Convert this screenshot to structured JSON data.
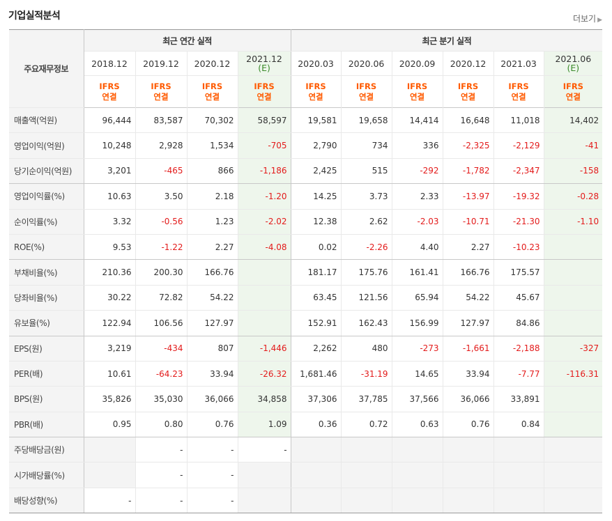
{
  "title": "기업실적분석",
  "more": "더보기",
  "corner": "주요재무정보",
  "group_annual": "최근 연간 실적",
  "group_quarter": "최근 분기 실적",
  "ifrs": "IFRS",
  "conn": "연결",
  "estimate_mark": "(E)",
  "periods": [
    "2018.12",
    "2019.12",
    "2020.12",
    "2021.12",
    "2020.03",
    "2020.06",
    "2020.09",
    "2020.12",
    "2021.03",
    "2021.06"
  ],
  "rows": [
    {
      "label": "매출액(억원)",
      "values": [
        "96,444",
        "83,587",
        "70,302",
        "58,597",
        "19,581",
        "19,658",
        "14,414",
        "16,648",
        "11,018",
        "14,402"
      ]
    },
    {
      "label": "영업이익(억원)",
      "values": [
        "10,248",
        "2,928",
        "1,534",
        "-705",
        "2,790",
        "734",
        "336",
        "-2,325",
        "-2,129",
        "-41"
      ]
    },
    {
      "label": "당기순이익(억원)",
      "values": [
        "3,201",
        "-465",
        "866",
        "-1,186",
        "2,425",
        "515",
        "-292",
        "-1,782",
        "-2,347",
        "-158"
      ]
    },
    {
      "label": "영업이익률(%)",
      "values": [
        "10.63",
        "3.50",
        "2.18",
        "-1.20",
        "14.25",
        "3.73",
        "2.33",
        "-13.97",
        "-19.32",
        "-0.28"
      ]
    },
    {
      "label": "순이익률(%)",
      "values": [
        "3.32",
        "-0.56",
        "1.23",
        "-2.02",
        "12.38",
        "2.62",
        "-2.03",
        "-10.71",
        "-21.30",
        "-1.10"
      ]
    },
    {
      "label": "ROE(%)",
      "values": [
        "9.53",
        "-1.22",
        "2.27",
        "-4.08",
        "0.02",
        "-2.26",
        "4.40",
        "2.27",
        "-10.23",
        ""
      ]
    },
    {
      "label": "부채비율(%)",
      "values": [
        "210.36",
        "200.30",
        "166.76",
        "",
        "181.17",
        "175.76",
        "161.41",
        "166.76",
        "175.57",
        ""
      ]
    },
    {
      "label": "당좌비율(%)",
      "values": [
        "30.22",
        "72.82",
        "54.22",
        "",
        "63.45",
        "121.56",
        "65.94",
        "54.22",
        "45.67",
        ""
      ]
    },
    {
      "label": "유보율(%)",
      "values": [
        "122.94",
        "106.56",
        "127.97",
        "",
        "152.91",
        "162.43",
        "156.99",
        "127.97",
        "84.86",
        ""
      ]
    },
    {
      "label": "EPS(원)",
      "values": [
        "3,219",
        "-434",
        "807",
        "-1,446",
        "2,262",
        "480",
        "-273",
        "-1,661",
        "-2,188",
        "-327"
      ]
    },
    {
      "label": "PER(배)",
      "values": [
        "10.61",
        "-64.23",
        "33.94",
        "-26.32",
        "1,681.46",
        "-31.19",
        "14.65",
        "33.94",
        "-7.77",
        "-116.31"
      ]
    },
    {
      "label": "BPS(원)",
      "values": [
        "35,826",
        "35,030",
        "36,066",
        "34,858",
        "37,306",
        "37,785",
        "37,566",
        "36,066",
        "33,891",
        ""
      ]
    },
    {
      "label": "PBR(배)",
      "values": [
        "0.95",
        "0.80",
        "0.76",
        "1.09",
        "0.36",
        "0.72",
        "0.63",
        "0.76",
        "0.84",
        ""
      ]
    },
    {
      "label": "주당배당금(원)",
      "values": [
        "",
        "-",
        "-",
        "-",
        "",
        "",
        "",
        "",
        "",
        ""
      ]
    },
    {
      "label": "시가배당률(%)",
      "values": [
        "",
        "-",
        "-",
        "",
        "",
        "",
        "",
        "",
        "",
        ""
      ]
    },
    {
      "label": "배당성향(%)",
      "values": [
        "-",
        "-",
        "-",
        "",
        "",
        "",
        "",
        "",
        "",
        ""
      ]
    }
  ],
  "colors": {
    "negative": "#e31b1b",
    "ifrs": "#ff5a00",
    "estimate_bg": "#eef6ec",
    "header_bg": "#f4f4f4"
  }
}
